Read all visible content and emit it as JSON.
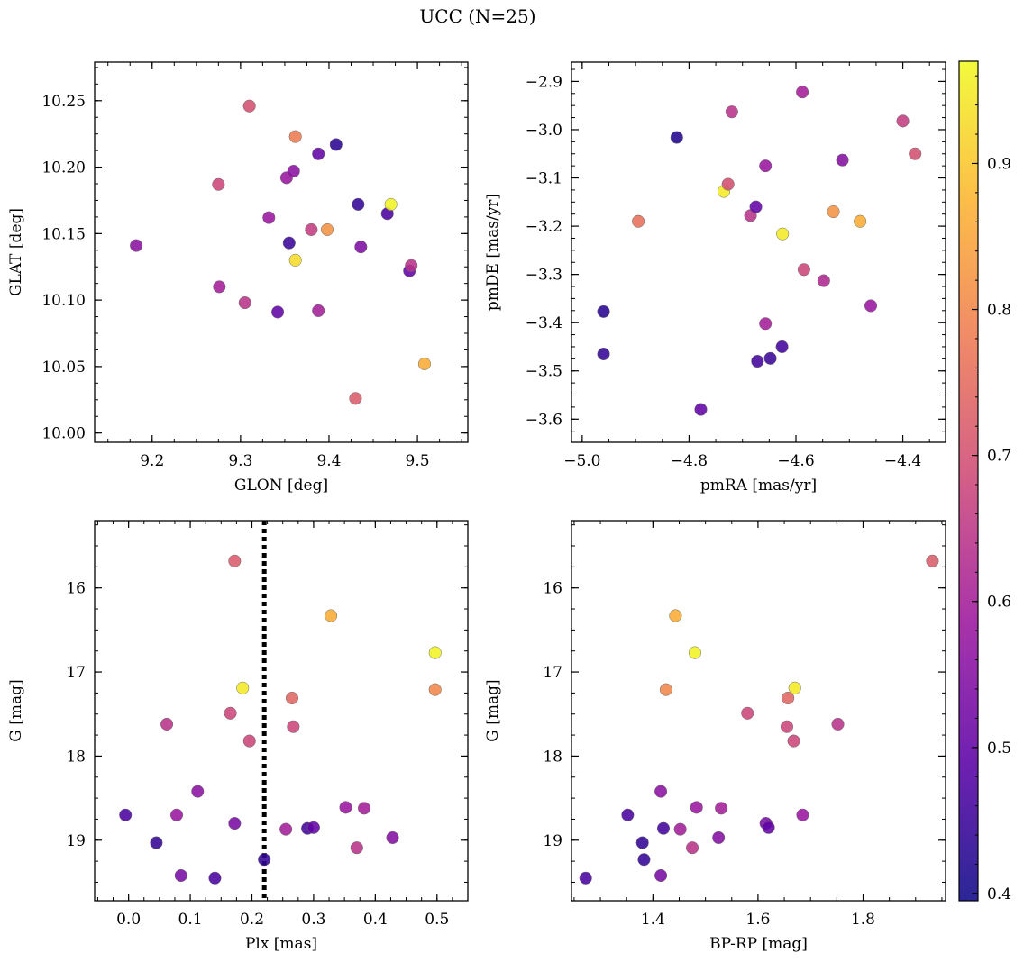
{
  "figure": {
    "title": "UCC (N=25)"
  },
  "colorbar": {
    "ticks": [
      0.4,
      0.5,
      0.6,
      0.7,
      0.8,
      0.9
    ],
    "labels": [
      "0.4",
      "0.5",
      "0.6",
      "0.7",
      "0.8",
      "0.9"
    ],
    "range": [
      0.395,
      0.97
    ],
    "colormap": "plasma",
    "colormap_stops": [
      "#0d0887",
      "#5c01a6",
      "#9c179e",
      "#cc4778",
      "#ed7953",
      "#fdb42f",
      "#f0f921"
    ]
  },
  "chart_data": [
    {
      "type": "scatter",
      "xlabel": "GLON [deg]",
      "ylabel": "GLAT [deg]",
      "xlim": [
        9.135,
        9.557
      ],
      "ylim": [
        9.993,
        10.279
      ],
      "xticks": [
        9.2,
        9.3,
        9.4,
        9.5
      ],
      "xtick_labels": [
        "9.2",
        "9.3",
        "9.4",
        "9.5"
      ],
      "yticks": [
        10.0,
        10.05,
        10.1,
        10.15,
        10.2,
        10.25
      ],
      "ytick_labels": [
        "10.00",
        "10.05",
        "10.10",
        "10.15",
        "10.20",
        "10.25"
      ],
      "points": [
        {
          "x": 9.182,
          "y": 10.141,
          "c": 0.56
        },
        {
          "x": 9.275,
          "y": 10.187,
          "c": 0.68
        },
        {
          "x": 9.276,
          "y": 10.11,
          "c": 0.6
        },
        {
          "x": 9.305,
          "y": 10.098,
          "c": 0.64
        },
        {
          "x": 9.31,
          "y": 10.246,
          "c": 0.7
        },
        {
          "x": 9.332,
          "y": 10.162,
          "c": 0.58
        },
        {
          "x": 9.342,
          "y": 10.091,
          "c": 0.5
        },
        {
          "x": 9.352,
          "y": 10.192,
          "c": 0.58
        },
        {
          "x": 9.355,
          "y": 10.143,
          "c": 0.45
        },
        {
          "x": 9.36,
          "y": 10.197,
          "c": 0.56
        },
        {
          "x": 9.362,
          "y": 10.223,
          "c": 0.78
        },
        {
          "x": 9.362,
          "y": 10.13,
          "c": 0.93
        },
        {
          "x": 9.38,
          "y": 10.153,
          "c": 0.66
        },
        {
          "x": 9.388,
          "y": 10.21,
          "c": 0.5
        },
        {
          "x": 9.388,
          "y": 10.092,
          "c": 0.6
        },
        {
          "x": 9.398,
          "y": 10.153,
          "c": 0.82
        },
        {
          "x": 9.408,
          "y": 10.217,
          "c": 0.43
        },
        {
          "x": 9.43,
          "y": 10.026,
          "c": 0.72
        },
        {
          "x": 9.433,
          "y": 10.172,
          "c": 0.44
        },
        {
          "x": 9.436,
          "y": 10.14,
          "c": 0.54
        },
        {
          "x": 9.466,
          "y": 10.165,
          "c": 0.47
        },
        {
          "x": 9.47,
          "y": 10.172,
          "c": 0.96
        },
        {
          "x": 9.491,
          "y": 10.122,
          "c": 0.5
        },
        {
          "x": 9.493,
          "y": 10.126,
          "c": 0.64
        },
        {
          "x": 9.508,
          "y": 10.052,
          "c": 0.86
        }
      ]
    },
    {
      "type": "scatter",
      "xlabel": "pmRA [mas/yr]",
      "ylabel": "pmDE [mas/yr]",
      "xlim": [
        -5.02,
        -4.32
      ],
      "ylim": [
        -3.648,
        -2.86
      ],
      "xticks": [
        -5.0,
        -4.8,
        -4.6,
        -4.4
      ],
      "xtick_labels": [
        "−5.0",
        "−4.8",
        "−4.6",
        "−4.4"
      ],
      "yticks": [
        -3.6,
        -3.5,
        -3.4,
        -3.3,
        -3.2,
        -3.1,
        -3.0,
        -2.9
      ],
      "ytick_labels": [
        "−3.6",
        "−3.5",
        "−3.4",
        "−3.3",
        "−3.2",
        "−3.1",
        "−3.0",
        "−2.9"
      ],
      "points": [
        {
          "x": -4.96,
          "y": -3.377,
          "c": 0.43
        },
        {
          "x": -4.96,
          "y": -3.465,
          "c": 0.44
        },
        {
          "x": -4.895,
          "y": -3.19,
          "c": 0.76
        },
        {
          "x": -4.823,
          "y": -3.016,
          "c": 0.42
        },
        {
          "x": -4.778,
          "y": -3.58,
          "c": 0.5
        },
        {
          "x": -4.735,
          "y": -3.128,
          "c": 0.95
        },
        {
          "x": -4.727,
          "y": -3.113,
          "c": 0.7
        },
        {
          "x": -4.72,
          "y": -2.963,
          "c": 0.64
        },
        {
          "x": -4.685,
          "y": -3.178,
          "c": 0.64
        },
        {
          "x": -4.675,
          "y": -3.16,
          "c": 0.5
        },
        {
          "x": -4.672,
          "y": -3.48,
          "c": 0.46
        },
        {
          "x": -4.657,
          "y": -3.075,
          "c": 0.58
        },
        {
          "x": -4.657,
          "y": -3.402,
          "c": 0.6
        },
        {
          "x": -4.648,
          "y": -3.474,
          "c": 0.45
        },
        {
          "x": -4.626,
          "y": -3.45,
          "c": 0.46
        },
        {
          "x": -4.625,
          "y": -3.216,
          "c": 0.95
        },
        {
          "x": -4.588,
          "y": -2.922,
          "c": 0.6
        },
        {
          "x": -4.585,
          "y": -3.29,
          "c": 0.68
        },
        {
          "x": -4.548,
          "y": -3.313,
          "c": 0.62
        },
        {
          "x": -4.53,
          "y": -3.17,
          "c": 0.82
        },
        {
          "x": -4.513,
          "y": -3.063,
          "c": 0.55
        },
        {
          "x": -4.48,
          "y": -3.19,
          "c": 0.86
        },
        {
          "x": -4.46,
          "y": -3.365,
          "c": 0.58
        },
        {
          "x": -4.4,
          "y": -2.982,
          "c": 0.66
        },
        {
          "x": -4.377,
          "y": -3.05,
          "c": 0.7
        }
      ]
    },
    {
      "type": "scatter",
      "xlabel": "Plx [mas]",
      "ylabel": "G [mag]",
      "xlim": [
        -0.055,
        0.55
      ],
      "ylim": [
        19.72,
        15.2
      ],
      "y_inverted": true,
      "xticks": [
        0.0,
        0.1,
        0.2,
        0.3,
        0.4,
        0.5
      ],
      "xtick_labels": [
        "0.0",
        "0.1",
        "0.2",
        "0.3",
        "0.4",
        "0.5"
      ],
      "yticks": [
        16,
        17,
        18,
        19
      ],
      "ytick_labels": [
        "16",
        "17",
        "18",
        "19"
      ],
      "vline": {
        "x": 0.22,
        "style": "dotted"
      },
      "points": [
        {
          "x": -0.005,
          "y": 18.7,
          "c": 0.47
        },
        {
          "x": 0.045,
          "y": 19.03,
          "c": 0.44
        },
        {
          "x": 0.062,
          "y": 17.62,
          "c": 0.64
        },
        {
          "x": 0.078,
          "y": 18.7,
          "c": 0.58
        },
        {
          "x": 0.085,
          "y": 19.42,
          "c": 0.53
        },
        {
          "x": 0.112,
          "y": 18.42,
          "c": 0.56
        },
        {
          "x": 0.14,
          "y": 19.45,
          "c": 0.47
        },
        {
          "x": 0.165,
          "y": 17.49,
          "c": 0.68
        },
        {
          "x": 0.172,
          "y": 15.68,
          "c": 0.72
        },
        {
          "x": 0.172,
          "y": 18.8,
          "c": 0.53
        },
        {
          "x": 0.185,
          "y": 17.19,
          "c": 0.95
        },
        {
          "x": 0.196,
          "y": 17.82,
          "c": 0.68
        },
        {
          "x": 0.22,
          "y": 19.23,
          "c": 0.44
        },
        {
          "x": 0.255,
          "y": 18.87,
          "c": 0.6
        },
        {
          "x": 0.265,
          "y": 17.31,
          "c": 0.74
        },
        {
          "x": 0.267,
          "y": 17.65,
          "c": 0.68
        },
        {
          "x": 0.29,
          "y": 18.86,
          "c": 0.46
        },
        {
          "x": 0.3,
          "y": 18.85,
          "c": 0.5
        },
        {
          "x": 0.328,
          "y": 16.33,
          "c": 0.86
        },
        {
          "x": 0.352,
          "y": 18.61,
          "c": 0.58
        },
        {
          "x": 0.37,
          "y": 19.09,
          "c": 0.64
        },
        {
          "x": 0.382,
          "y": 18.62,
          "c": 0.6
        },
        {
          "x": 0.428,
          "y": 18.97,
          "c": 0.55
        },
        {
          "x": 0.497,
          "y": 16.77,
          "c": 0.96
        },
        {
          "x": 0.497,
          "y": 17.21,
          "c": 0.8
        }
      ]
    },
    {
      "type": "scatter",
      "xlabel": "BP-RP [mag]",
      "ylabel": "G [mag]",
      "xlim": [
        1.245,
        1.957
      ],
      "ylim": [
        19.72,
        15.2
      ],
      "y_inverted": true,
      "xticks": [
        1.4,
        1.6,
        1.8
      ],
      "xtick_labels": [
        "1.4",
        "1.6",
        "1.8"
      ],
      "yticks": [
        16,
        17,
        18,
        19
      ],
      "ytick_labels": [
        "16",
        "17",
        "18",
        "19"
      ],
      "points": [
        {
          "x": 1.272,
          "y": 19.45,
          "c": 0.47
        },
        {
          "x": 1.352,
          "y": 18.7,
          "c": 0.47
        },
        {
          "x": 1.38,
          "y": 19.03,
          "c": 0.44
        },
        {
          "x": 1.383,
          "y": 19.23,
          "c": 0.44
        },
        {
          "x": 1.415,
          "y": 19.42,
          "c": 0.53
        },
        {
          "x": 1.415,
          "y": 18.42,
          "c": 0.56
        },
        {
          "x": 1.42,
          "y": 18.86,
          "c": 0.46
        },
        {
          "x": 1.425,
          "y": 17.21,
          "c": 0.8
        },
        {
          "x": 1.443,
          "y": 16.33,
          "c": 0.86
        },
        {
          "x": 1.452,
          "y": 18.87,
          "c": 0.6
        },
        {
          "x": 1.475,
          "y": 19.09,
          "c": 0.64
        },
        {
          "x": 1.48,
          "y": 16.77,
          "c": 0.96
        },
        {
          "x": 1.483,
          "y": 18.61,
          "c": 0.58
        },
        {
          "x": 1.525,
          "y": 18.97,
          "c": 0.55
        },
        {
          "x": 1.53,
          "y": 18.62,
          "c": 0.6
        },
        {
          "x": 1.58,
          "y": 17.49,
          "c": 0.68
        },
        {
          "x": 1.615,
          "y": 18.8,
          "c": 0.53
        },
        {
          "x": 1.62,
          "y": 18.85,
          "c": 0.5
        },
        {
          "x": 1.655,
          "y": 17.65,
          "c": 0.68
        },
        {
          "x": 1.657,
          "y": 17.31,
          "c": 0.74
        },
        {
          "x": 1.668,
          "y": 17.82,
          "c": 0.68
        },
        {
          "x": 1.67,
          "y": 17.19,
          "c": 0.95
        },
        {
          "x": 1.685,
          "y": 18.7,
          "c": 0.58
        },
        {
          "x": 1.752,
          "y": 17.62,
          "c": 0.64
        },
        {
          "x": 1.932,
          "y": 15.68,
          "c": 0.72
        }
      ]
    }
  ]
}
